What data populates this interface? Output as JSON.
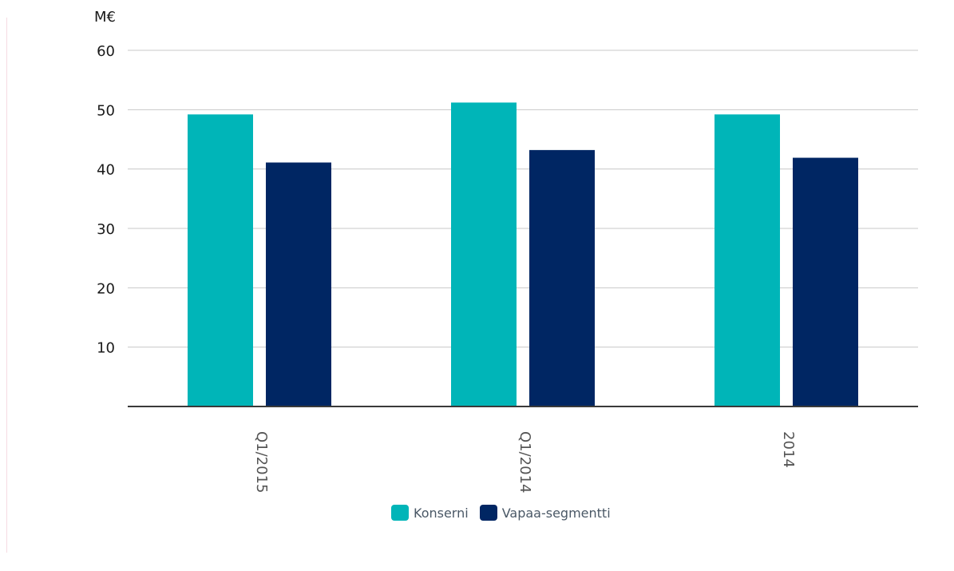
{
  "chart_data": {
    "type": "bar",
    "title": "",
    "xlabel": "",
    "ylabel": "",
    "unit_label": "M€",
    "categories": [
      "Q1/2015",
      "Q1/2014",
      "2014"
    ],
    "series": [
      {
        "name": "Konserni",
        "color": "#00b5b8",
        "values": [
          49.2,
          51.2,
          49.2
        ]
      },
      {
        "name": "Vapaa-segmentti",
        "color": "#002663",
        "values": [
          41.1,
          43.2,
          41.9
        ]
      }
    ],
    "ylim": [
      0,
      60
    ],
    "yticks": [
      10,
      20,
      30,
      40,
      50,
      60
    ],
    "grid": true,
    "legend_position": "bottom-center"
  }
}
